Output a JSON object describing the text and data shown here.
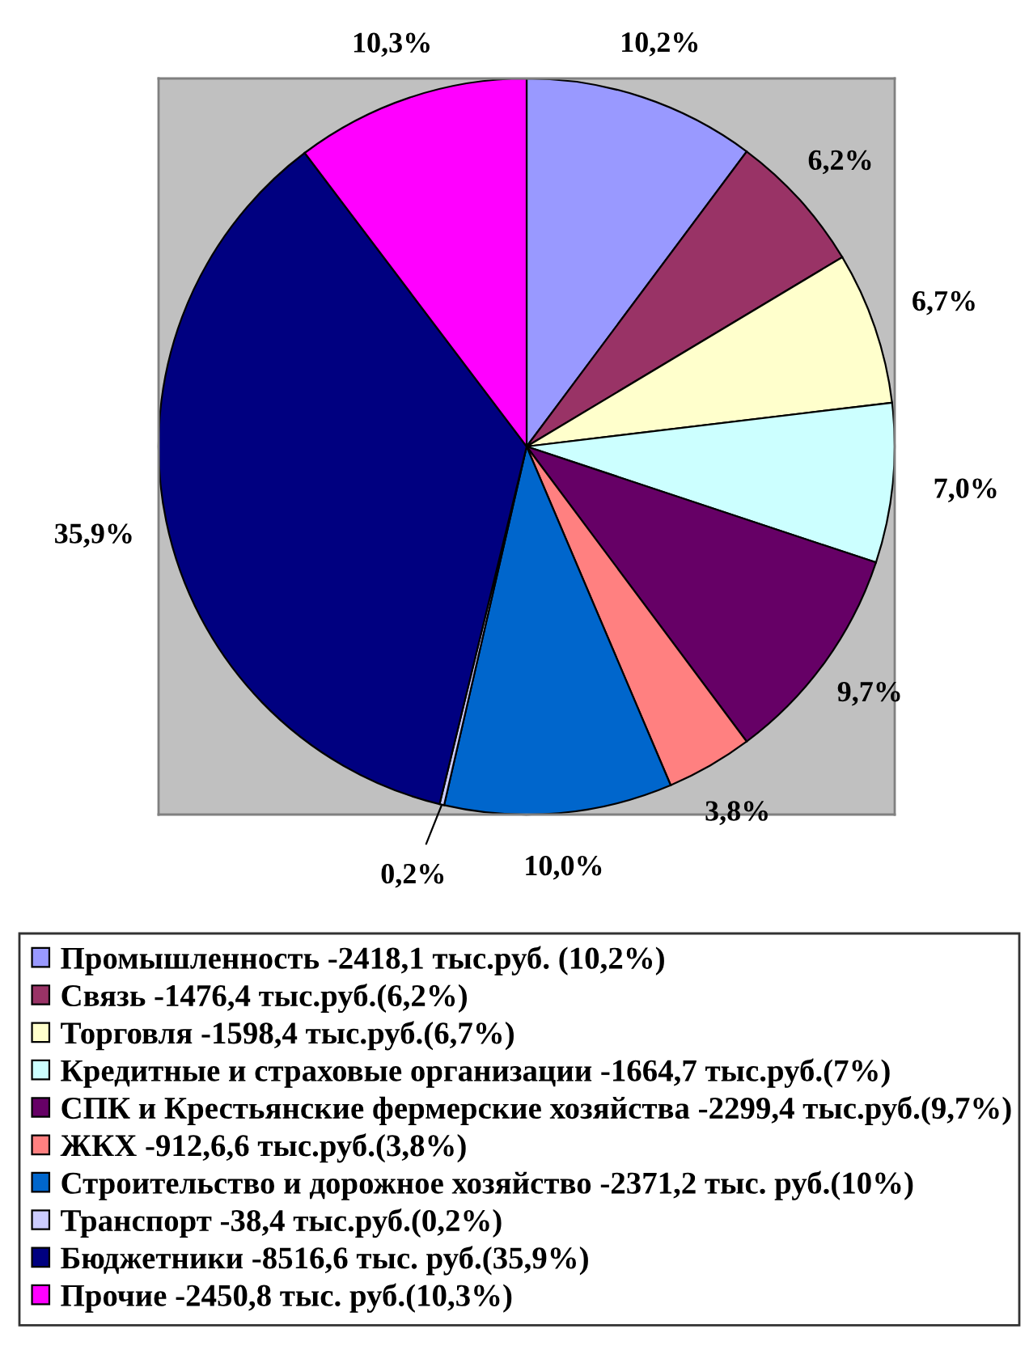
{
  "chart_data": {
    "type": "pie",
    "categories": [
      "Промышленность -2418,1 тыс.руб. (10,2%)",
      "Связь -1476,4 тыс.руб.(6,2%)",
      "Торговля -1598,4 тыс.руб.(6,7%)",
      "Кредитные и страховые организации -1664,7 тыс.руб.(7%)",
      "СПК и Крестьянские фермерские хозяйства -2299,4 тыс.руб.(9,7%)",
      "ЖКХ -912,6,6 тыс.руб.(3,8%)",
      "Строительство и дорожное хозяйство -2371,2 тыс. руб.(10%)",
      "Транспорт -38,4 тыс.руб.(0,2%)",
      "Бюджетники -8516,6 тыс. руб.(35,9%)",
      "Прочие -2450,8 тыс. руб.(10,3%)"
    ],
    "values": [
      10.2,
      6.2,
      6.7,
      7.0,
      9.7,
      3.8,
      10.0,
      0.2,
      35.9,
      10.3
    ],
    "colors": [
      "#9999ff",
      "#993366",
      "#ffffcc",
      "#ccffff",
      "#660066",
      "#ff8080",
      "#0066cc",
      "#ccccff",
      "#000080",
      "#ff00ff"
    ],
    "value_labels": [
      "10,2%",
      "6,2%",
      "6,7%",
      "7,0%",
      "9,7%",
      "3,8%",
      "10,0%",
      "0,2%",
      "35,9%",
      "10,3%"
    ],
    "legend": "bottom"
  }
}
